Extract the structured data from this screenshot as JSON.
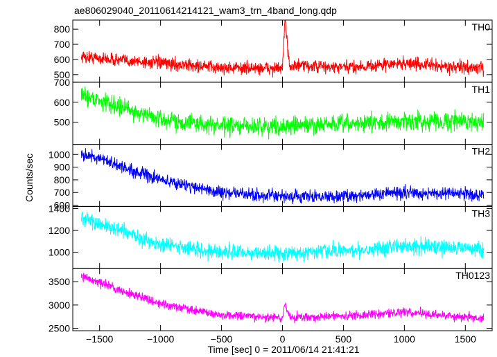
{
  "figure": {
    "title": "ae806029040_20110614214121_wam3_trn_4band_long.qdp",
    "ylabel": "Counts/sec",
    "xlabel": "Time [sec] 0 = 2011/06/14 21:41:21"
  },
  "chart_data": {
    "type": "line",
    "title": "ae806029040_20110614214121_wam3_trn_4band_long.qdp",
    "xlabel": "Time [sec] 0 = 2011/06/14 21:41:21",
    "ylabel": "Counts/sec",
    "xlim": [
      -1720,
      1720
    ],
    "x_ticks": [
      -1500,
      -1000,
      -500,
      0,
      500,
      1000,
      1500
    ],
    "x_tick_labels": [
      "−1500",
      "−1000",
      "−500",
      "0",
      "500",
      "1000",
      "1500"
    ],
    "panels": [
      {
        "name": "TH0",
        "color": "#ff0000",
        "ylim": [
          450,
          860
        ],
        "y_ticks": [
          500,
          600,
          700,
          800
        ],
        "y_tick_labels": [
          "500",
          "600",
          "700",
          "800"
        ],
        "noise": 30,
        "x": [
          -1650,
          -1400,
          -1000,
          -500,
          0,
          20,
          60,
          500,
          1000,
          1500,
          1650
        ],
        "y": [
          620,
          600,
          575,
          545,
          540,
          850,
          560,
          545,
          575,
          545,
          540
        ]
      },
      {
        "name": "TH1",
        "color": "#00ff00",
        "ylim": [
          390,
          700
        ],
        "y_ticks": [
          500,
          600,
          700
        ],
        "y_tick_labels": [
          "500",
          "600",
          "700"
        ],
        "noise": 32,
        "x": [
          -1650,
          -1400,
          -1000,
          -500,
          0,
          500,
          1000,
          1500,
          1650
        ],
        "y": [
          640,
          590,
          515,
          480,
          480,
          490,
          505,
          505,
          505
        ]
      },
      {
        "name": "TH2",
        "color": "#0000ff",
        "ylim": [
          590,
          1080
        ],
        "y_ticks": [
          600,
          700,
          800,
          900,
          1000
        ],
        "y_tick_labels": [
          "600",
          "700",
          "800",
          "900",
          "1000"
        ],
        "noise": 35,
        "x": [
          -1650,
          -1400,
          -1000,
          -500,
          0,
          500,
          1000,
          1500,
          1650
        ],
        "y": [
          1010,
          930,
          800,
          700,
          665,
          670,
          700,
          690,
          680
        ]
      },
      {
        "name": "TH3",
        "color": "#00ffff",
        "ylim": [
          850,
          1420
        ],
        "y_ticks": [
          1000,
          1200,
          1400
        ],
        "y_tick_labels": [
          "1000",
          "1200",
          "1400"
        ],
        "noise": 50,
        "x": [
          -1650,
          -1400,
          -1000,
          -500,
          0,
          500,
          1000,
          1500,
          1650
        ],
        "y": [
          1320,
          1220,
          1070,
          1000,
          990,
          1010,
          1060,
          1040,
          1020
        ]
      },
      {
        "name": "TH0123",
        "color": "#ff00ff",
        "ylim": [
          2450,
          3780
        ],
        "y_ticks": [
          2500,
          3000,
          3500
        ],
        "y_tick_labels": [
          "2500",
          "3000",
          "3500"
        ],
        "noise": 70,
        "x": [
          -1650,
          -1400,
          -1000,
          -500,
          0,
          20,
          60,
          500,
          1000,
          1500,
          1650
        ],
        "y": [
          3610,
          3380,
          3030,
          2780,
          2720,
          3000,
          2740,
          2760,
          2850,
          2740,
          2720
        ]
      }
    ]
  }
}
